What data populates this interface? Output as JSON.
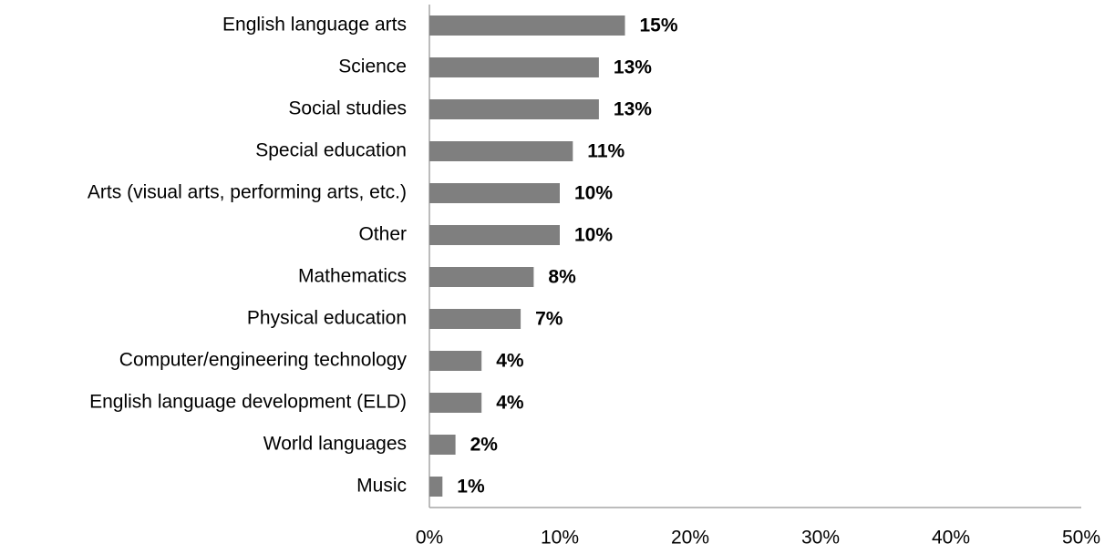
{
  "chart_data": {
    "type": "hbar",
    "categories": [
      "English language arts",
      "Science",
      "Social studies",
      "Special education",
      "Arts (visual arts, performing arts, etc.)",
      "Other",
      "Mathematics",
      "Physical education",
      "Computer/engineering technology",
      "English language development (ELD)",
      "World languages",
      "Music"
    ],
    "values": [
      15,
      13,
      13,
      11,
      10,
      10,
      8,
      7,
      4,
      4,
      2,
      1
    ],
    "value_labels": [
      "15%",
      "13%",
      "13%",
      "11%",
      "10%",
      "10%",
      "8%",
      "7%",
      "4%",
      "4%",
      "2%",
      "1%"
    ],
    "color": "#7f7f7f",
    "xlim": [
      0,
      50
    ],
    "xticks": [
      {
        "value": 0,
        "label": "0%"
      },
      {
        "value": 10,
        "label": "10%"
      },
      {
        "value": 20,
        "label": "20%"
      },
      {
        "value": 30,
        "label": "30%"
      },
      {
        "value": 40,
        "label": "40%"
      },
      {
        "value": 50,
        "label": "50%"
      }
    ],
    "grid": false
  }
}
